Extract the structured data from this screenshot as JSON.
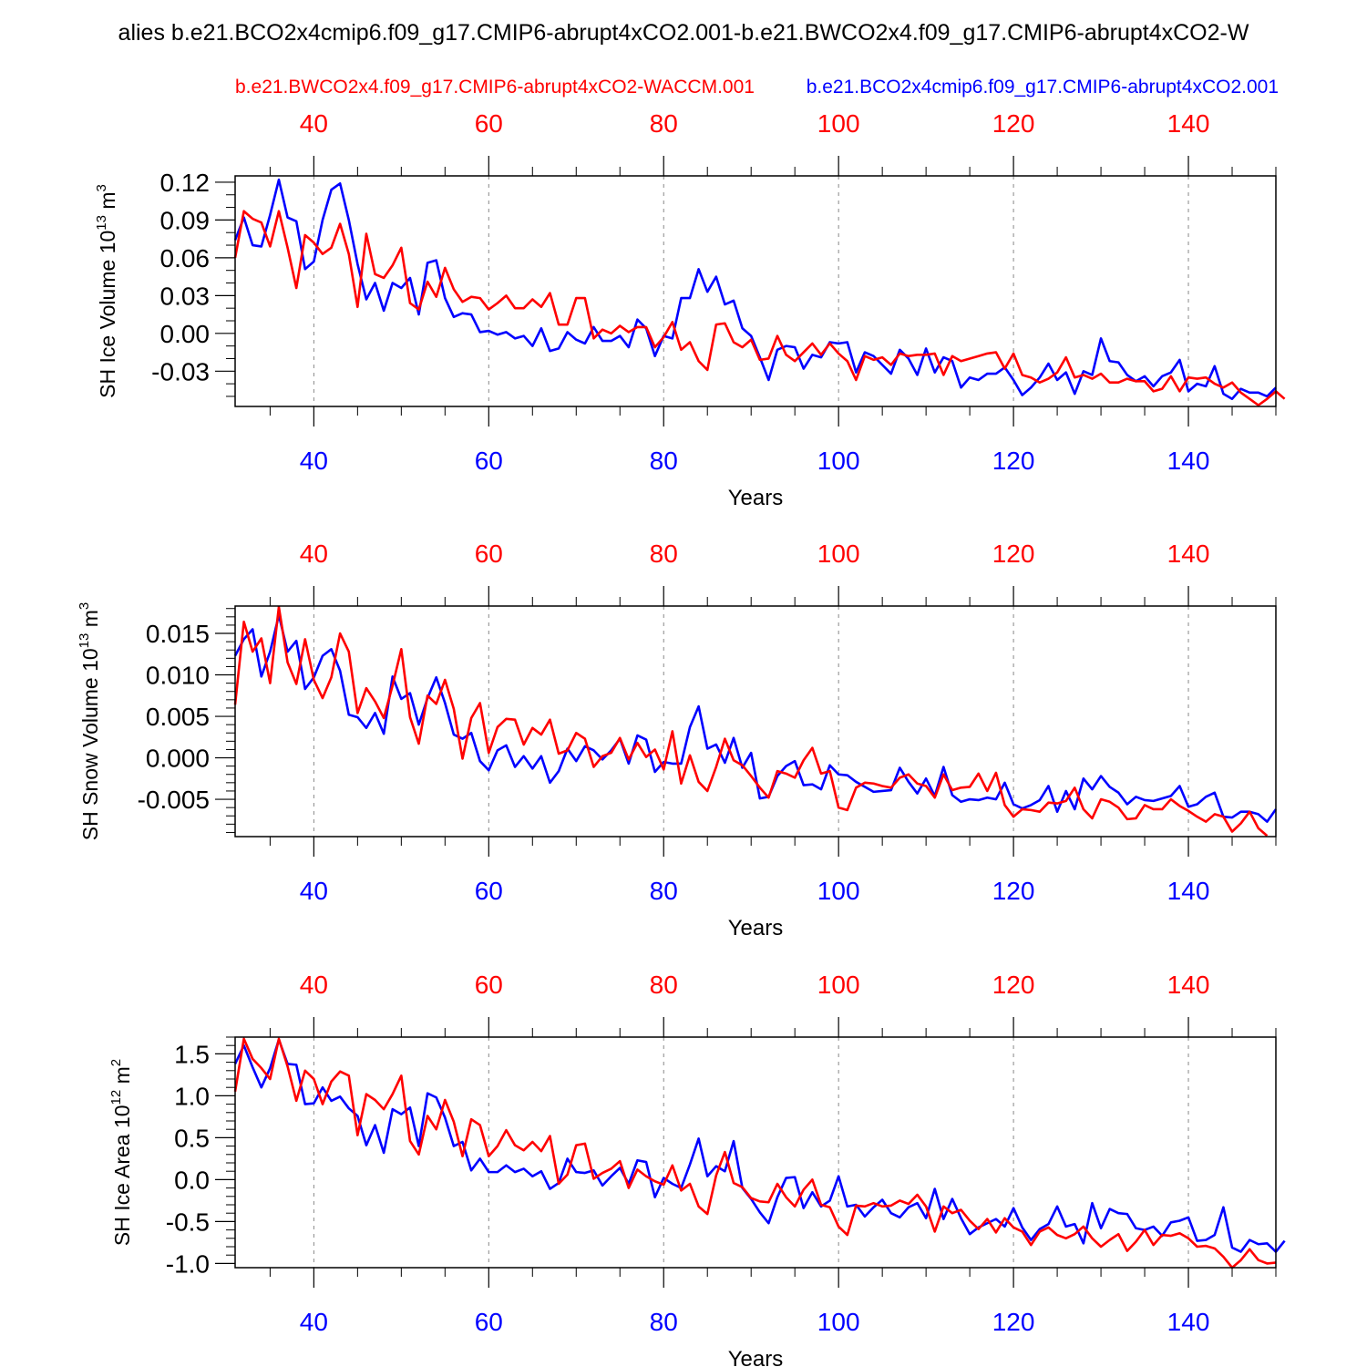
{
  "figure_title": "alies b.e21.BCO2x4cmip6.f09_g17.CMIP6-abrupt4xCO2.001-b.e21.BWCO2x4.f09_g17.CMIP6-abrupt4xCO2-W",
  "legend": {
    "red_label": "b.e21.BWCO2x4.f09_g17.CMIP6-abrupt4xCO2-WACCM.001",
    "blue_label": "b.e21.BCO2x4cmip6.f09_g17.CMIP6-abrupt4xCO2.001"
  },
  "colors": {
    "red": "#ff0000",
    "blue": "#0000ff",
    "axis": "#000000",
    "grid": "#888888"
  },
  "chart_data": [
    {
      "type": "line",
      "title": "",
      "xlabel": "Years",
      "ylabel": "SH Ice Volume 10^13 m^3",
      "ylabel_parts": {
        "base": "SH Ice Volume 10",
        "exp": "13",
        "unit": " m",
        "unit_exp": "3"
      },
      "xlim": [
        31,
        150
      ],
      "ylim": [
        -0.058,
        0.125
      ],
      "yticks": [
        0.12,
        0.09,
        0.06,
        0.03,
        0.0,
        -0.03
      ],
      "ytick_labels": [
        "0.12",
        "0.09",
        "0.06",
        "0.03",
        "0.00",
        "-0.03"
      ],
      "yminor_step": 0.01,
      "xticks": [
        40,
        60,
        80,
        100,
        120,
        140
      ],
      "xtick_labels": [
        "40",
        "60",
        "80",
        "100",
        "120",
        "140"
      ],
      "xminor_step": 5,
      "grid": "vertical dashed at major x ticks",
      "series": [
        {
          "name": "b.e21.BCO2x4cmip6.f09_g17.CMIP6-abrupt4xCO2.001",
          "color": "blue",
          "x_start": 31,
          "values": [
            0.074,
            0.092,
            0.07,
            0.069,
            0.094,
            0.122,
            0.092,
            0.089,
            0.051,
            0.057,
            0.09,
            0.114,
            0.119,
            0.09,
            0.055,
            0.027,
            0.04,
            0.018,
            0.04,
            0.036,
            0.044,
            0.015,
            0.056,
            0.058,
            0.028,
            0.013,
            0.016,
            0.015,
            0.001,
            0.002,
            -0.001,
            0.001,
            -0.004,
            -0.002,
            -0.01,
            0.004,
            -0.014,
            -0.012,
            0.001,
            -0.005,
            -0.008,
            0.005,
            -0.006,
            -0.006,
            -0.002,
            -0.011,
            0.011,
            0.004,
            -0.018,
            -0.002,
            -0.004,
            0.028,
            0.028,
            0.051,
            0.033,
            0.045,
            0.023,
            0.026,
            0.004,
            -0.002,
            -0.019,
            -0.037,
            -0.013,
            -0.01,
            -0.011,
            -0.028,
            -0.017,
            -0.019,
            -0.007,
            -0.008,
            -0.007,
            -0.031,
            -0.015,
            -0.018,
            -0.025,
            -0.032,
            -0.013,
            -0.02,
            -0.033,
            -0.012,
            -0.031,
            -0.019,
            -0.022,
            -0.043,
            -0.035,
            -0.037,
            -0.032,
            -0.032,
            -0.027,
            -0.037,
            -0.049,
            -0.043,
            -0.035,
            -0.024,
            -0.037,
            -0.031,
            -0.048,
            -0.03,
            -0.033,
            -0.004,
            -0.022,
            -0.023,
            -0.033,
            -0.038,
            -0.034,
            -0.042,
            -0.034,
            -0.031,
            -0.021,
            -0.046,
            -0.04,
            -0.042,
            -0.026,
            -0.048,
            -0.052,
            -0.044,
            -0.047,
            -0.047,
            -0.05,
            -0.043
          ]
        },
        {
          "name": "b.e21.BWCO2x4.f09_g17.CMIP6-abrupt4xCO2-WACCM.001",
          "color": "red",
          "x_start": 31,
          "values": [
            0.06,
            0.097,
            0.091,
            0.088,
            0.069,
            0.097,
            0.068,
            0.036,
            0.078,
            0.072,
            0.063,
            0.068,
            0.087,
            0.063,
            0.021,
            0.079,
            0.047,
            0.044,
            0.054,
            0.068,
            0.024,
            0.019,
            0.041,
            0.029,
            0.052,
            0.035,
            0.025,
            0.029,
            0.028,
            0.019,
            0.024,
            0.03,
            0.02,
            0.02,
            0.027,
            0.021,
            0.032,
            0.007,
            0.007,
            0.028,
            0.028,
            -0.004,
            0.003,
            0.0,
            0.006,
            0.001,
            0.005,
            0.005,
            -0.011,
            -0.003,
            0.009,
            -0.013,
            -0.007,
            -0.022,
            -0.029,
            0.007,
            0.008,
            -0.007,
            -0.011,
            -0.005,
            -0.021,
            -0.02,
            -0.002,
            -0.017,
            -0.022,
            -0.015,
            -0.008,
            -0.017,
            -0.008,
            -0.016,
            -0.022,
            -0.037,
            -0.018,
            -0.021,
            -0.019,
            -0.025,
            -0.016,
            -0.018,
            -0.017,
            -0.017,
            -0.016,
            -0.033,
            -0.018,
            -0.022,
            -0.02,
            -0.018,
            -0.016,
            -0.015,
            -0.028,
            -0.016,
            -0.033,
            -0.035,
            -0.039,
            -0.036,
            -0.031,
            -0.019,
            -0.035,
            -0.033,
            -0.036,
            -0.032,
            -0.039,
            -0.039,
            -0.036,
            -0.038,
            -0.038,
            -0.046,
            -0.044,
            -0.034,
            -0.046,
            -0.035,
            -0.036,
            -0.035,
            -0.04,
            -0.043,
            -0.039,
            -0.047,
            -0.052,
            -0.057,
            -0.052,
            -0.046,
            -0.052
          ]
        }
      ]
    },
    {
      "type": "line",
      "title": "",
      "xlabel": "Years",
      "ylabel": "SH Snow Volume 10^13 m^3",
      "ylabel_parts": {
        "base": "SH Snow Volume 10",
        "exp": "13",
        "unit": " m",
        "unit_exp": "3"
      },
      "xlim": [
        31,
        150
      ],
      "ylim": [
        -0.0095,
        0.0183
      ],
      "yticks": [
        0.015,
        0.01,
        0.005,
        0.0,
        -0.005
      ],
      "ytick_labels": [
        "0.015",
        "0.010",
        "0.005",
        "0.000",
        "-0.005"
      ],
      "yminor_step": 0.001,
      "xticks": [
        40,
        60,
        80,
        100,
        120,
        140
      ],
      "xtick_labels": [
        "40",
        "60",
        "80",
        "100",
        "120",
        "140"
      ],
      "xminor_step": 5,
      "grid": "vertical dashed at major x ticks",
      "series": [
        {
          "name": "b.e21.BCO2x4cmip6.f09_g17.CMIP6-abrupt4xCO2.001",
          "color": "blue",
          "x_start": 31,
          "values": [
            0.0123,
            0.0143,
            0.0155,
            0.0098,
            0.0128,
            0.0172,
            0.0128,
            0.0141,
            0.0083,
            0.0097,
            0.0123,
            0.0131,
            0.0105,
            0.0052,
            0.0049,
            0.0036,
            0.0054,
            0.0029,
            0.0098,
            0.0071,
            0.0078,
            0.004,
            0.0072,
            0.0097,
            0.0066,
            0.0028,
            0.0023,
            0.003,
            -0.0004,
            -0.0015,
            0.0009,
            0.0015,
            -0.0011,
            0.0002,
            -0.0013,
            0.0002,
            -0.003,
            -0.0016,
            0.0011,
            -0.0004,
            0.0014,
            0.0009,
            -0.0002,
            0.0009,
            0.0023,
            -0.0007,
            0.0027,
            0.0022,
            -0.0017,
            -0.0005,
            -0.0007,
            -0.0007,
            0.0037,
            0.0062,
            0.0011,
            0.0016,
            -0.0006,
            0.0024,
            -0.0012,
            0.0006,
            -0.0049,
            -0.0047,
            -0.0022,
            -0.001,
            -0.0004,
            -0.0033,
            -0.0032,
            -0.0038,
            -0.0009,
            -0.002,
            -0.0021,
            -0.0029,
            -0.0035,
            -0.0041,
            -0.004,
            -0.0039,
            -0.0012,
            -0.0029,
            -0.0043,
            -0.0025,
            -0.0046,
            -0.0011,
            -0.0045,
            -0.0053,
            -0.005,
            -0.0051,
            -0.0048,
            -0.005,
            -0.003,
            -0.0056,
            -0.0061,
            -0.0057,
            -0.0051,
            -0.0034,
            -0.0065,
            -0.004,
            -0.0062,
            -0.0025,
            -0.0038,
            -0.0022,
            -0.0035,
            -0.0042,
            -0.0056,
            -0.0047,
            -0.0051,
            -0.0052,
            -0.0049,
            -0.0046,
            -0.0034,
            -0.0059,
            -0.0056,
            -0.0047,
            -0.0042,
            -0.0071,
            -0.0072,
            -0.0065,
            -0.0065,
            -0.0068,
            -0.0077,
            -0.0062
          ]
        },
        {
          "name": "b.e21.BWCO2x4.f09_g17.CMIP6-abrupt4xCO2-WACCM.001",
          "color": "red",
          "x_start": 31,
          "values": [
            0.0064,
            0.0164,
            0.0128,
            0.0144,
            0.009,
            0.0182,
            0.0115,
            0.0089,
            0.0143,
            0.0094,
            0.0072,
            0.0097,
            0.015,
            0.0128,
            0.0054,
            0.0084,
            0.0068,
            0.0048,
            0.0087,
            0.0131,
            0.0049,
            0.0017,
            0.0075,
            0.0065,
            0.0094,
            0.0059,
            -0.0001,
            0.0048,
            0.0066,
            0.0006,
            0.0037,
            0.0047,
            0.0046,
            0.0016,
            0.0036,
            0.0028,
            0.0046,
            0.0005,
            0.0009,
            0.003,
            0.0023,
            -0.0011,
            0.0002,
            0.0006,
            0.0024,
            -0.0002,
            0.0018,
            0.0001,
            0.001,
            -0.0014,
            0.0032,
            -0.0031,
            0.0003,
            -0.0029,
            -0.004,
            -0.0011,
            0.0023,
            -0.0003,
            -0.0009,
            -0.0022,
            -0.0036,
            -0.0048,
            -0.0016,
            -0.0019,
            -0.0024,
            -0.0003,
            0.0012,
            -0.0019,
            -0.0016,
            -0.006,
            -0.0063,
            -0.0036,
            -0.003,
            -0.0031,
            -0.0034,
            -0.0036,
            -0.0024,
            -0.002,
            -0.0031,
            -0.0034,
            -0.0048,
            -0.002,
            -0.0039,
            -0.0036,
            -0.0035,
            -0.0019,
            -0.004,
            -0.0018,
            -0.0057,
            -0.0071,
            -0.0062,
            -0.0063,
            -0.0065,
            -0.0054,
            -0.0055,
            -0.0052,
            -0.0036,
            -0.0062,
            -0.0073,
            -0.005,
            -0.0053,
            -0.006,
            -0.0074,
            -0.0073,
            -0.0057,
            -0.0062,
            -0.0062,
            -0.005,
            -0.0058,
            -0.0064,
            -0.0071,
            -0.0077,
            -0.0068,
            -0.0071,
            -0.0089,
            -0.0079,
            -0.0065,
            -0.0085,
            -0.0094
          ]
        }
      ]
    },
    {
      "type": "line",
      "title": "",
      "xlabel": "Years",
      "ylabel": "SH Ice Area 10^12 m^2",
      "ylabel_parts": {
        "base": "SH Ice Area 10",
        "exp": "12",
        "unit": " m",
        "unit_exp": "2"
      },
      "xlim": [
        31,
        150
      ],
      "ylim": [
        -1.05,
        1.7
      ],
      "yticks": [
        1.5,
        1.0,
        0.5,
        0.0,
        -0.5,
        -1.0
      ],
      "ytick_labels": [
        "1.5",
        "1.0",
        "0.5",
        "0.0",
        "-0.5",
        "-1.0"
      ],
      "yminor_step": 0.1,
      "xticks": [
        40,
        60,
        80,
        100,
        120,
        140
      ],
      "xtick_labels": [
        "40",
        "60",
        "80",
        "100",
        "120",
        "140"
      ],
      "xminor_step": 5,
      "grid": "vertical dashed at major x ticks",
      "series": [
        {
          "name": "b.e21.BCO2x4cmip6.f09_g17.CMIP6-abrupt4xCO2.001",
          "color": "blue",
          "x_start": 31,
          "values": [
            1.38,
            1.6,
            1.34,
            1.1,
            1.33,
            1.67,
            1.38,
            1.37,
            0.9,
            0.91,
            1.1,
            0.94,
            0.99,
            0.85,
            0.76,
            0.41,
            0.65,
            0.32,
            0.84,
            0.78,
            0.86,
            0.4,
            1.03,
            0.98,
            0.74,
            0.4,
            0.45,
            0.11,
            0.25,
            0.09,
            0.09,
            0.17,
            0.09,
            0.13,
            0.04,
            0.1,
            -0.11,
            -0.04,
            0.25,
            0.09,
            0.08,
            0.11,
            -0.07,
            0.04,
            0.14,
            -0.05,
            0.23,
            0.21,
            -0.21,
            0.02,
            -0.05,
            -0.1,
            0.18,
            0.49,
            0.04,
            0.16,
            0.1,
            0.46,
            -0.1,
            -0.23,
            -0.39,
            -0.52,
            -0.21,
            0.02,
            0.03,
            -0.34,
            -0.15,
            -0.32,
            -0.25,
            0.04,
            -0.32,
            -0.3,
            -0.44,
            -0.33,
            -0.24,
            -0.4,
            -0.45,
            -0.33,
            -0.28,
            -0.46,
            -0.11,
            -0.47,
            -0.23,
            -0.46,
            -0.65,
            -0.57,
            -0.52,
            -0.47,
            -0.56,
            -0.34,
            -0.57,
            -0.72,
            -0.59,
            -0.53,
            -0.32,
            -0.56,
            -0.53,
            -0.76,
            -0.28,
            -0.58,
            -0.35,
            -0.4,
            -0.41,
            -0.58,
            -0.6,
            -0.56,
            -0.67,
            -0.51,
            -0.49,
            -0.45,
            -0.73,
            -0.72,
            -0.66,
            -0.33,
            -0.81,
            -0.86,
            -0.72,
            -0.77,
            -0.76,
            -0.86,
            -0.73
          ]
        },
        {
          "name": "b.e21.BWCO2x4.f09_g17.CMIP6-abrupt4xCO2-WACCM.001",
          "color": "red",
          "x_start": 31,
          "values": [
            1.05,
            1.68,
            1.44,
            1.33,
            1.2,
            1.68,
            1.35,
            0.94,
            1.3,
            1.2,
            0.9,
            1.17,
            1.29,
            1.24,
            0.53,
            1.02,
            0.95,
            0.84,
            1.02,
            1.24,
            0.46,
            0.3,
            0.76,
            0.6,
            0.95,
            0.69,
            0.28,
            0.72,
            0.65,
            0.28,
            0.4,
            0.59,
            0.41,
            0.35,
            0.45,
            0.34,
            0.52,
            -0.05,
            0.06,
            0.41,
            0.43,
            0.01,
            0.08,
            0.13,
            0.22,
            -0.1,
            0.12,
            0.04,
            -0.02,
            -0.06,
            0.17,
            -0.13,
            -0.05,
            -0.32,
            -0.41,
            0.05,
            0.33,
            -0.04,
            -0.09,
            -0.22,
            -0.26,
            -0.27,
            -0.05,
            -0.21,
            -0.32,
            -0.12,
            0.0,
            -0.3,
            -0.33,
            -0.56,
            -0.66,
            -0.31,
            -0.32,
            -0.28,
            -0.32,
            -0.31,
            -0.25,
            -0.29,
            -0.18,
            -0.32,
            -0.62,
            -0.32,
            -0.4,
            -0.36,
            -0.49,
            -0.59,
            -0.47,
            -0.63,
            -0.46,
            -0.57,
            -0.62,
            -0.78,
            -0.62,
            -0.57,
            -0.66,
            -0.7,
            -0.65,
            -0.56,
            -0.7,
            -0.8,
            -0.72,
            -0.65,
            -0.85,
            -0.74,
            -0.6,
            -0.78,
            -0.66,
            -0.67,
            -0.64,
            -0.7,
            -0.8,
            -0.79,
            -0.82,
            -0.92,
            -1.05,
            -0.96,
            -0.83,
            -0.96,
            -1.0,
            -0.99
          ]
        }
      ]
    }
  ]
}
